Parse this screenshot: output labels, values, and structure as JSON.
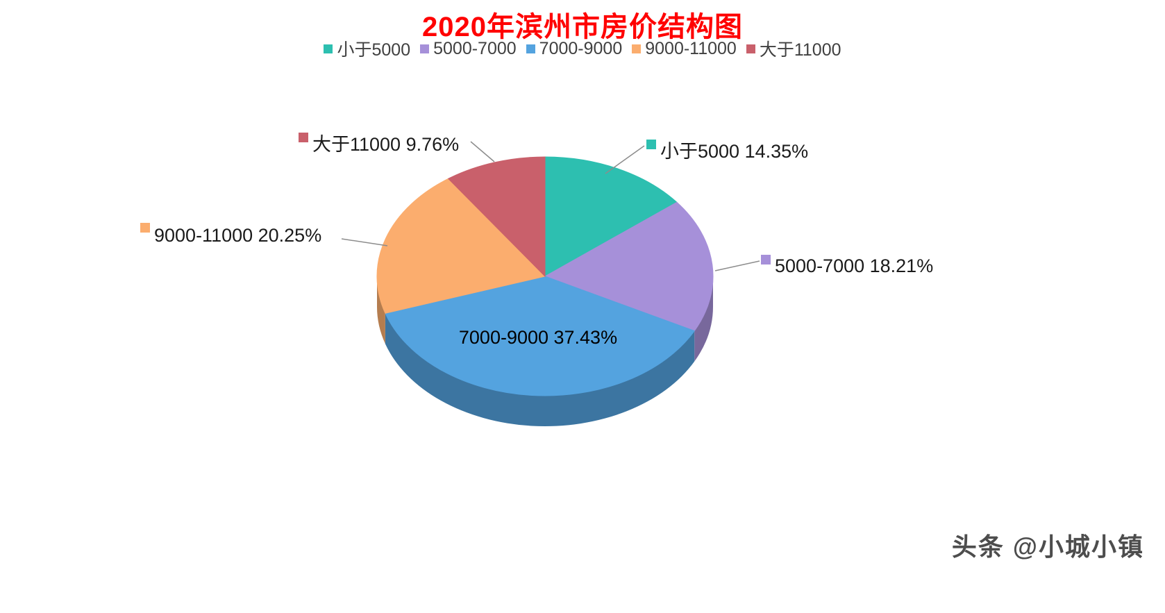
{
  "page": {
    "watermark": "头条 @小城小镇"
  },
  "chart_data": {
    "type": "pie",
    "style": "3d",
    "title": "2020年滨州市房价结构图",
    "title_color": "#ff0000",
    "legend_position": "top",
    "categories": [
      "小于5000",
      "5000-7000",
      "7000-9000",
      "9000-11000",
      "大于11000"
    ],
    "values": [
      14.35,
      18.21,
      37.43,
      20.25,
      9.76
    ],
    "unit": "%",
    "colors": [
      "#2dbfb0",
      "#a690d9",
      "#54a3df",
      "#fbad6e",
      "#c9606b"
    ],
    "data_labels": [
      "小于5000 14.35%",
      "5000-7000 18.21%",
      "7000-9000 37.43%",
      "9000-11000 20.25%",
      "大于11000 9.76%"
    ],
    "start_angle_deg": 0,
    "direction": "clockwise"
  }
}
